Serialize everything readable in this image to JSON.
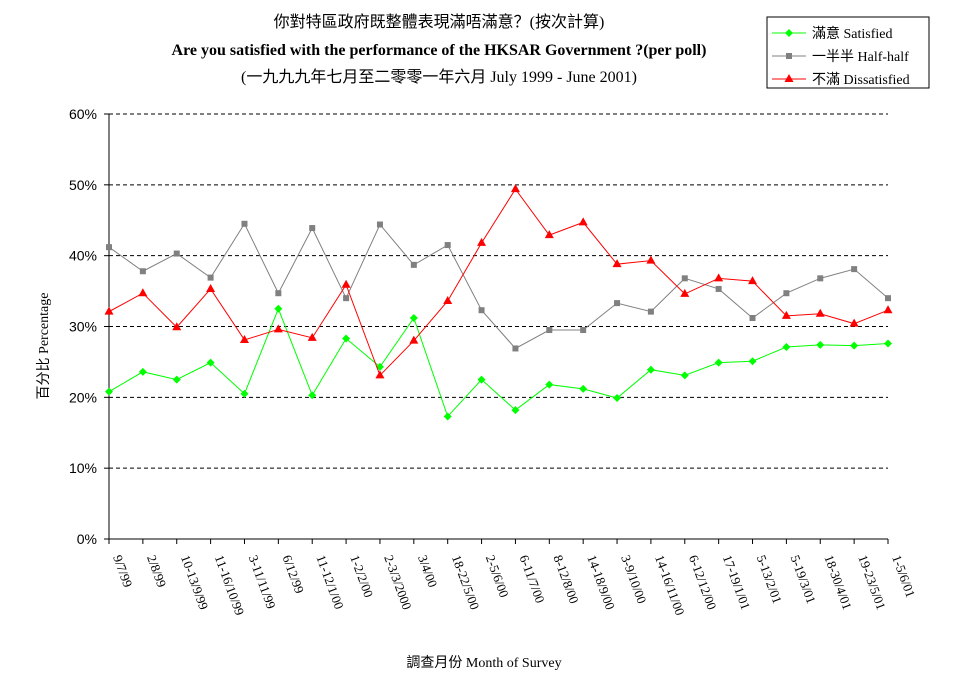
{
  "chart_data": {
    "type": "line",
    "title": "你對特區政府既整體表現滿唔滿意？(按次計算)",
    "subtitle": "Are you satisfied with the performance of the HKSAR Government ?(per poll)",
    "subtitle2": "(一九九九年七月至二零零一年六月 July 1999 - June 2001)",
    "xlabel": "調查月份 Month of Survey",
    "ylabel": "百分比 Percentage",
    "ylim": [
      0,
      60
    ],
    "yticks": [
      "0%",
      "10%",
      "20%",
      "30%",
      "40%",
      "50%",
      "60%"
    ],
    "grid": true,
    "legend_position": "top-right",
    "categories": [
      "9/7/99",
      "2/8/99",
      "10-13/9/99",
      "11-16/10/99",
      "3-11/11/99",
      "6/12/99",
      "11-12/1/00",
      "1-2/2/00",
      "2-3/3/2000",
      "3/4/00",
      "18-22/5/00",
      "2-5/6/00",
      "6-11/7/00",
      "8-12/8/00",
      "14-18/9/00",
      "3-9/10/00",
      "14-16/11/00",
      "6-12/12/00",
      "17-19/1/01",
      "5-13/2/01",
      "5-19/3/01",
      "18-30/4/01",
      "19-23/5/01",
      "1-5/6/01"
    ],
    "series": [
      {
        "name": "滿意 Satisfied",
        "color": "#00ff00",
        "marker": "diamond",
        "values": [
          20.8,
          23.6,
          22.5,
          24.9,
          20.5,
          32.5,
          20.3,
          28.3,
          24.3,
          31.2,
          17.3,
          22.5,
          18.2,
          21.8,
          21.2,
          19.9,
          23.9,
          23.1,
          24.9,
          25.1,
          27.1,
          27.4,
          27.3,
          27.6
        ]
      },
      {
        "name": "一半半 Half-half",
        "color": "#808080",
        "marker": "square",
        "values": [
          41.2,
          37.8,
          40.3,
          36.9,
          44.5,
          34.7,
          43.9,
          34.0,
          44.4,
          38.7,
          41.5,
          32.3,
          26.9,
          29.5,
          29.5,
          33.3,
          32.1,
          36.8,
          35.3,
          31.2,
          34.7,
          36.8,
          38.1,
          34.0
        ]
      },
      {
        "name": "不滿 Dissatisfied",
        "color": "#ff0000",
        "marker": "triangle",
        "values": [
          32.1,
          34.7,
          29.9,
          35.3,
          28.1,
          29.6,
          28.4,
          35.9,
          23.1,
          28.0,
          33.6,
          41.8,
          49.4,
          42.9,
          44.7,
          38.8,
          39.3,
          34.6,
          36.8,
          36.4,
          31.5,
          31.8,
          30.4,
          32.3
        ]
      }
    ]
  }
}
